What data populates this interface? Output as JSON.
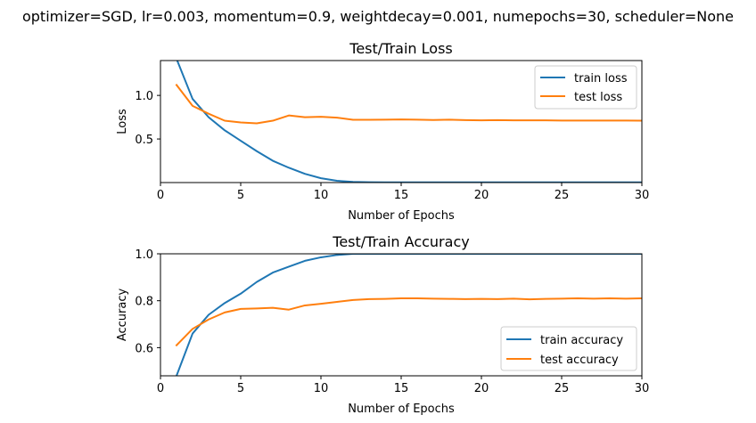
{
  "figure": {
    "suptitle": "optimizer=SGD, lr=0.003, momentum=0.9, weightdecay=0.001, numepochs=30, scheduler=None"
  },
  "colors": {
    "train": "#1f77b4",
    "test": "#ff7f0e"
  },
  "chart_data": [
    {
      "type": "line",
      "title": "Test/Train Loss",
      "xlabel": "Number of Epochs",
      "ylabel": "Loss",
      "xlim": [
        0,
        30
      ],
      "ylim": [
        0.0,
        1.4
      ],
      "xticks": [
        0,
        5,
        10,
        15,
        20,
        25,
        30
      ],
      "yticks": [
        0.5,
        1.0
      ],
      "xtick_labels": [
        "0",
        "5",
        "10",
        "15",
        "20",
        "25",
        "30"
      ],
      "ytick_labels": [
        "0.5",
        "1.0"
      ],
      "legend": "top-right",
      "series": [
        {
          "name": "train loss",
          "color": "#1f77b4",
          "x": [
            1,
            2,
            3,
            4,
            5,
            6,
            7,
            8,
            9,
            10,
            11,
            12,
            13,
            14,
            15,
            16,
            17,
            18,
            19,
            20,
            21,
            22,
            23,
            24,
            25,
            26,
            27,
            28,
            29,
            30
          ],
          "values": [
            1.42,
            0.96,
            0.75,
            0.6,
            0.48,
            0.36,
            0.25,
            0.17,
            0.1,
            0.05,
            0.02,
            0.008,
            0.004,
            0.003,
            0.002,
            0.002,
            0.002,
            0.002,
            0.002,
            0.002,
            0.002,
            0.002,
            0.002,
            0.002,
            0.002,
            0.002,
            0.002,
            0.002,
            0.002,
            0.002
          ]
        },
        {
          "name": "test loss",
          "color": "#ff7f0e",
          "x": [
            1,
            2,
            3,
            4,
            5,
            6,
            7,
            8,
            9,
            10,
            11,
            12,
            13,
            14,
            15,
            16,
            17,
            18,
            19,
            20,
            21,
            22,
            23,
            24,
            25,
            26,
            27,
            28,
            29,
            30
          ],
          "values": [
            1.12,
            0.88,
            0.79,
            0.71,
            0.69,
            0.68,
            0.71,
            0.77,
            0.75,
            0.755,
            0.745,
            0.72,
            0.72,
            0.722,
            0.724,
            0.722,
            0.718,
            0.722,
            0.716,
            0.714,
            0.716,
            0.714,
            0.714,
            0.714,
            0.712,
            0.712,
            0.712,
            0.712,
            0.712,
            0.71
          ]
        }
      ]
    },
    {
      "type": "line",
      "title": "Test/Train Accuracy",
      "xlabel": "Number of Epochs",
      "ylabel": "Accuracy",
      "xlim": [
        0,
        30
      ],
      "ylim": [
        0.48,
        1.0
      ],
      "xticks": [
        0,
        5,
        10,
        15,
        20,
        25,
        30
      ],
      "yticks": [
        0.6,
        0.8,
        1.0
      ],
      "xtick_labels": [
        "0",
        "5",
        "10",
        "15",
        "20",
        "25",
        "30"
      ],
      "ytick_labels": [
        "0.6",
        "0.8",
        "1.0"
      ],
      "legend": "bottom-right",
      "series": [
        {
          "name": "train accuracy",
          "color": "#1f77b4",
          "x": [
            1,
            2,
            3,
            4,
            5,
            6,
            7,
            8,
            9,
            10,
            11,
            12,
            13,
            14,
            15,
            16,
            17,
            18,
            19,
            20,
            21,
            22,
            23,
            24,
            25,
            26,
            27,
            28,
            29,
            30
          ],
          "values": [
            0.48,
            0.66,
            0.74,
            0.79,
            0.83,
            0.88,
            0.92,
            0.945,
            0.97,
            0.985,
            0.995,
            1.0,
            1.0,
            1.0,
            1.0,
            1.0,
            1.0,
            1.0,
            1.0,
            1.0,
            1.0,
            1.0,
            1.0,
            1.0,
            1.0,
            1.0,
            1.0,
            1.0,
            1.0,
            1.0
          ]
        },
        {
          "name": "test accuracy",
          "color": "#ff7f0e",
          "x": [
            1,
            2,
            3,
            4,
            5,
            6,
            7,
            8,
            9,
            10,
            11,
            12,
            13,
            14,
            15,
            16,
            17,
            18,
            19,
            20,
            21,
            22,
            23,
            24,
            25,
            26,
            27,
            28,
            29,
            30
          ],
          "values": [
            0.61,
            0.68,
            0.72,
            0.75,
            0.765,
            0.767,
            0.77,
            0.762,
            0.78,
            0.787,
            0.795,
            0.803,
            0.807,
            0.808,
            0.81,
            0.81,
            0.809,
            0.808,
            0.807,
            0.808,
            0.807,
            0.809,
            0.806,
            0.808,
            0.809,
            0.81,
            0.809,
            0.81,
            0.809,
            0.81
          ]
        }
      ]
    }
  ]
}
